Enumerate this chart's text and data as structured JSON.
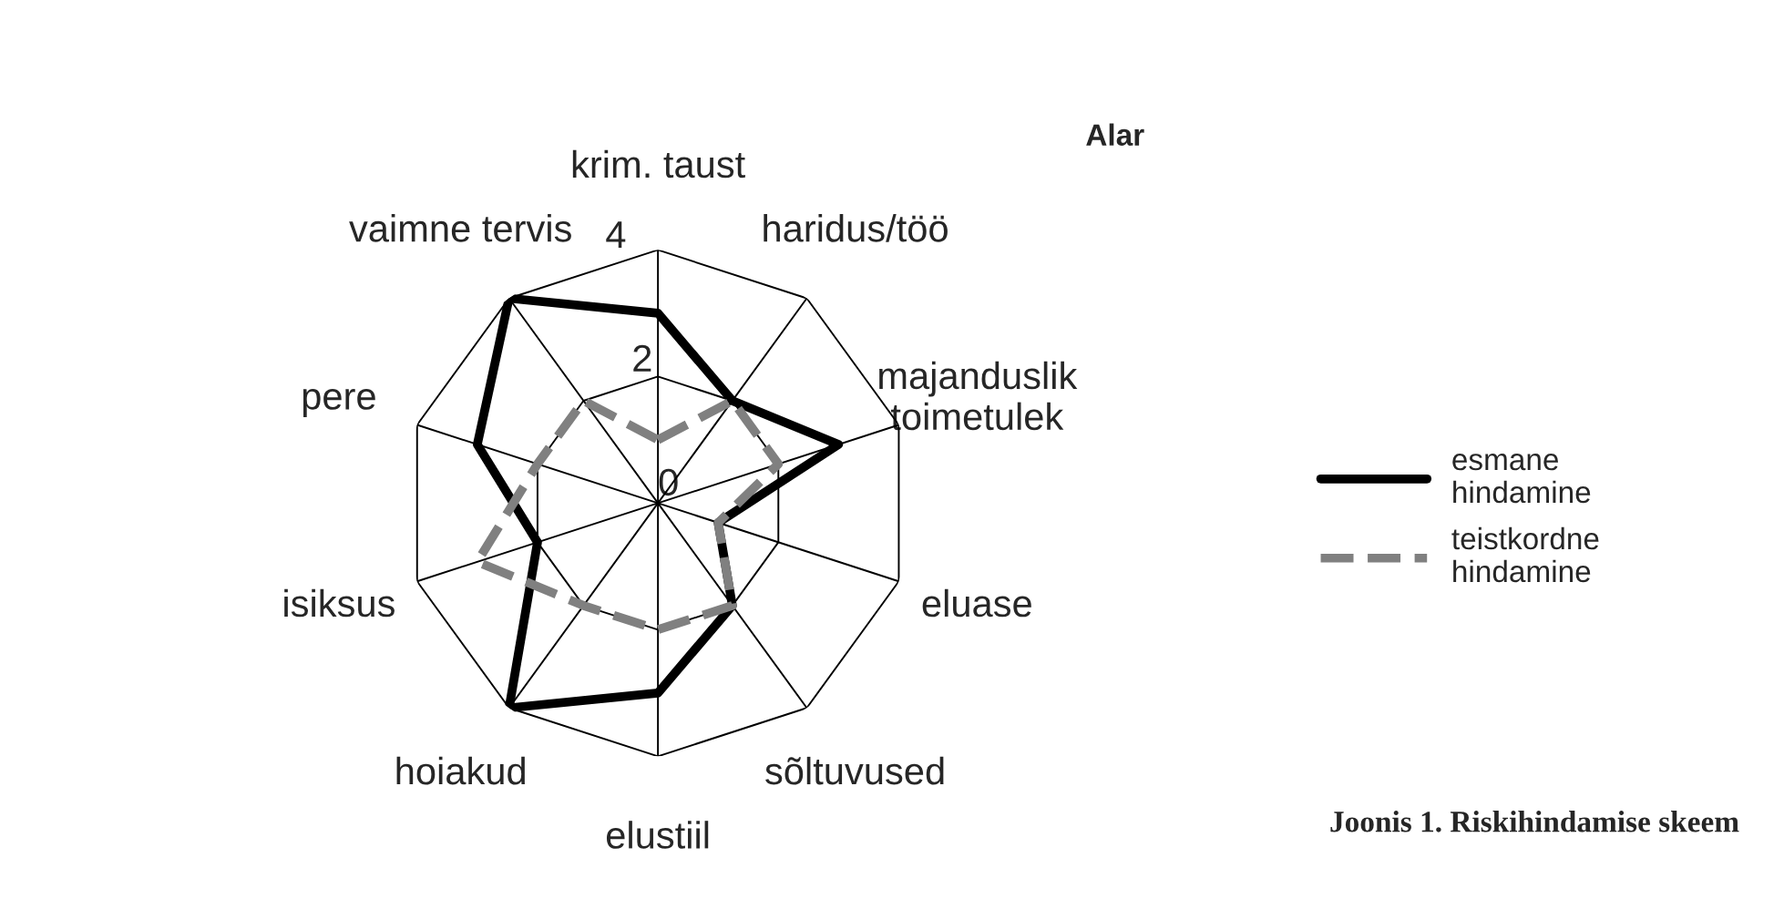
{
  "chart_data": {
    "type": "radar",
    "title": "Alar",
    "categories": [
      "krim. taust",
      "haridus/töö",
      "majanduslik\ntoimetulek",
      "eluase",
      "sõltuvused",
      "elustiil",
      "hoiakud",
      "isiksus",
      "pere",
      "vaimne tervis"
    ],
    "series": [
      {
        "name": "esmane hindamine",
        "color": "#000000",
        "line_style": "solid",
        "values": [
          3,
          2,
          3,
          1,
          2,
          3,
          4,
          2,
          3,
          4
        ]
      },
      {
        "name": "teistkordne hindamine",
        "color": "#808080",
        "line_style": "dashed",
        "values": [
          1,
          2,
          2,
          1,
          2,
          2,
          2,
          3,
          2,
          2
        ]
      }
    ],
    "ylim": [
      0,
      4
    ],
    "yticks": [
      0,
      2,
      4
    ],
    "grid": true,
    "legend": "right",
    "marker": "none",
    "annotations": [
      "Joonis 1. Riskihindamise skeem"
    ]
  }
}
